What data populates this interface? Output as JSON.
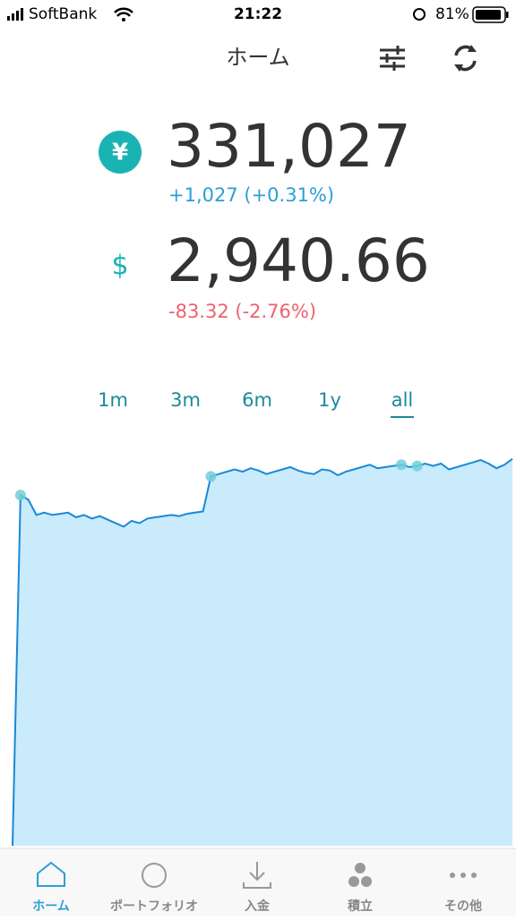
{
  "status_bar": {
    "carrier": "SoftBank",
    "time": "21:22",
    "battery": "81%"
  },
  "header": {
    "title": "ホーム"
  },
  "balances": [
    {
      "symbol": "¥",
      "amount": "331,027",
      "change": "+1,027 (+0.31%)",
      "change_color": "#2a9fd6"
    },
    {
      "symbol": "$",
      "amount": "2,940.66",
      "change": "-83.32 (-2.76%)",
      "change_color": "#f0606e"
    }
  ],
  "tabs": {
    "items": [
      "1m",
      "3m",
      "6m",
      "1y",
      "all"
    ],
    "active": 4
  },
  "chart_data": {
    "type": "area",
    "color": "#1a88d6",
    "fill": "#c9ebfb",
    "marker_color": "#6fd0d8",
    "values": [
      0,
      300000,
      296000,
      283000,
      285000,
      283000,
      284000,
      285000,
      281000,
      283000,
      280000,
      282000,
      279000,
      276000,
      273000,
      278000,
      276000,
      280000,
      281000,
      282000,
      283000,
      282000,
      284000,
      285000,
      286000,
      316000,
      318000,
      320000,
      322000,
      320000,
      323000,
      321000,
      318000,
      320000,
      322000,
      324000,
      321000,
      319000,
      318000,
      322000,
      321000,
      317000,
      320000,
      322000,
      324000,
      326000,
      323000,
      324000,
      325000,
      326000,
      324000,
      325000,
      327000,
      325000,
      327000,
      322000,
      324000,
      326000,
      328000,
      330000,
      327000,
      323000,
      326000,
      331000
    ],
    "markers": [
      1,
      25,
      49,
      51
    ],
    "ylim": [
      0,
      340000
    ]
  },
  "nav": {
    "items": [
      "ホーム",
      "ポートフォリオ",
      "入金",
      "積立",
      "その他"
    ],
    "active": 0
  }
}
